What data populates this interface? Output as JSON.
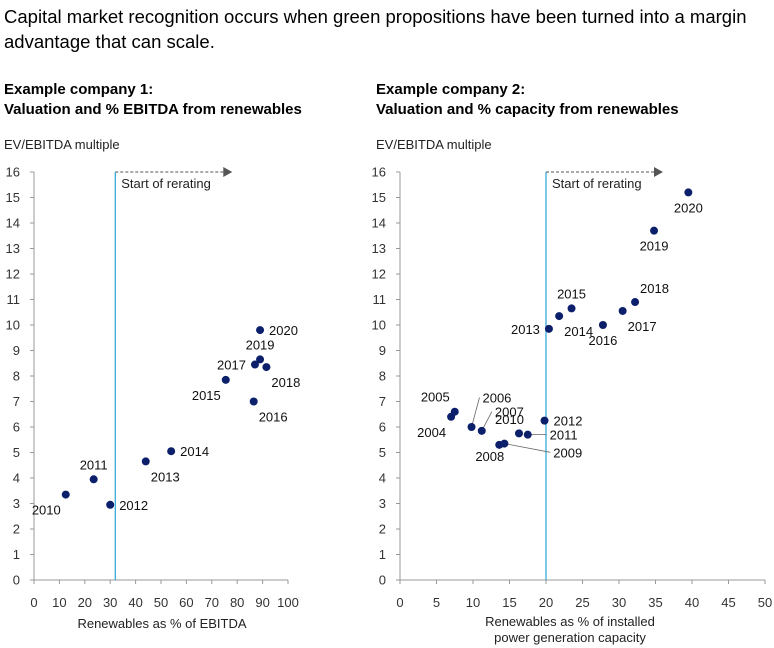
{
  "headline": "Capital market recognition occurs when green propositions have been turned into a margin advantage that can scale.",
  "colors": {
    "point": "#0b1f6b",
    "rerating_line": "#29a3d6",
    "axis": "#999999",
    "arrow": "#555555"
  },
  "chart_data": [
    {
      "type": "scatter",
      "title": "Example company 1:",
      "subtitle": "Valuation and % EBITDA from renewables",
      "ylabel": "EV/EBITDA multiple",
      "xlabel": [
        "Renewables as % of EBITDA"
      ],
      "xlim": [
        0,
        100
      ],
      "ylim": [
        0,
        16
      ],
      "xticks": [
        0,
        10,
        20,
        30,
        40,
        50,
        60,
        70,
        80,
        90,
        100
      ],
      "yticks": [
        0,
        1,
        2,
        3,
        4,
        5,
        6,
        7,
        8,
        9,
        10,
        11,
        12,
        13,
        14,
        15,
        16
      ],
      "rerating_x": 32,
      "rerating_label": "Start of rerating",
      "points": [
        {
          "label": "2010",
          "x": 12.5,
          "y": 3.35,
          "pos": "bl"
        },
        {
          "label": "2011",
          "x": 23.5,
          "y": 3.95,
          "pos": "t"
        },
        {
          "label": "2012",
          "x": 30,
          "y": 2.95,
          "pos": "r"
        },
        {
          "label": "2013",
          "x": 44,
          "y": 4.65,
          "pos": "br"
        },
        {
          "label": "2014",
          "x": 54,
          "y": 5.05,
          "pos": "r"
        },
        {
          "label": "2015",
          "x": 75.5,
          "y": 7.85,
          "pos": "bl"
        },
        {
          "label": "2016",
          "x": 86.5,
          "y": 7.0,
          "pos": "br"
        },
        {
          "label": "2017",
          "x": 87,
          "y": 8.45,
          "pos": "l"
        },
        {
          "label": "2018",
          "x": 91.5,
          "y": 8.35,
          "pos": "br"
        },
        {
          "label": "2019",
          "x": 89,
          "y": 8.65,
          "pos": "t"
        },
        {
          "label": "2020",
          "x": 89,
          "y": 9.8,
          "pos": "r"
        }
      ]
    },
    {
      "type": "scatter",
      "title": "Example company 2:",
      "subtitle": "Valuation and % capacity from renewables",
      "ylabel": "EV/EBITDA multiple",
      "xlabel": [
        "Renewables as % of installed",
        "power generation capacity"
      ],
      "xlim": [
        0,
        50
      ],
      "ylim": [
        0,
        16
      ],
      "xticks": [
        0,
        5,
        10,
        15,
        20,
        25,
        30,
        35,
        40,
        45,
        50
      ],
      "yticks": [
        0,
        1,
        2,
        3,
        4,
        5,
        6,
        7,
        8,
        9,
        10,
        11,
        12,
        13,
        14,
        15,
        16
      ],
      "rerating_x": 20,
      "rerating_label": "Start of rerating",
      "points": [
        {
          "label": "2004",
          "x": 7,
          "y": 6.4,
          "pos": "bl"
        },
        {
          "label": "2005",
          "x": 7.5,
          "y": 6.6,
          "pos": "tl"
        },
        {
          "label": "2006",
          "x": 9.8,
          "y": 6.0,
          "pos": "custom",
          "lx": 11.3,
          "ly": 7.0,
          "leader": true
        },
        {
          "label": "2007",
          "x": 11.2,
          "y": 5.85,
          "pos": "custom",
          "lx": 13.0,
          "ly": 6.45,
          "leader": true
        },
        {
          "label": "2008",
          "x": 13.6,
          "y": 5.3,
          "pos": "custom",
          "lx": 12.3,
          "ly": 4.7,
          "leader": false
        },
        {
          "label": "2009",
          "x": 14.3,
          "y": 5.35,
          "pos": "custom",
          "lx": 21.0,
          "ly": 4.85,
          "leader": true
        },
        {
          "label": "2010",
          "x": 16.3,
          "y": 5.75,
          "pos": "custom",
          "lx": 15.0,
          "ly": 6.15,
          "leader": false
        },
        {
          "label": "2011",
          "x": 17.5,
          "y": 5.7,
          "pos": "custom",
          "lx": 20.5,
          "ly": 5.55,
          "leader": true
        },
        {
          "label": "2012",
          "x": 19.8,
          "y": 6.25,
          "pos": "r"
        },
        {
          "label": "2013",
          "x": 20.4,
          "y": 9.85,
          "pos": "l"
        },
        {
          "label": "2014",
          "x": 21.8,
          "y": 10.35,
          "pos": "br"
        },
        {
          "label": "2015",
          "x": 23.5,
          "y": 10.65,
          "pos": "t"
        },
        {
          "label": "2016",
          "x": 27.8,
          "y": 10.0,
          "pos": "b"
        },
        {
          "label": "2017",
          "x": 30.5,
          "y": 10.55,
          "pos": "br"
        },
        {
          "label": "2018",
          "x": 32.2,
          "y": 10.9,
          "pos": "tr"
        },
        {
          "label": "2019",
          "x": 34.8,
          "y": 13.7,
          "pos": "b"
        },
        {
          "label": "2020",
          "x": 39.5,
          "y": 15.2,
          "pos": "b"
        }
      ]
    }
  ]
}
